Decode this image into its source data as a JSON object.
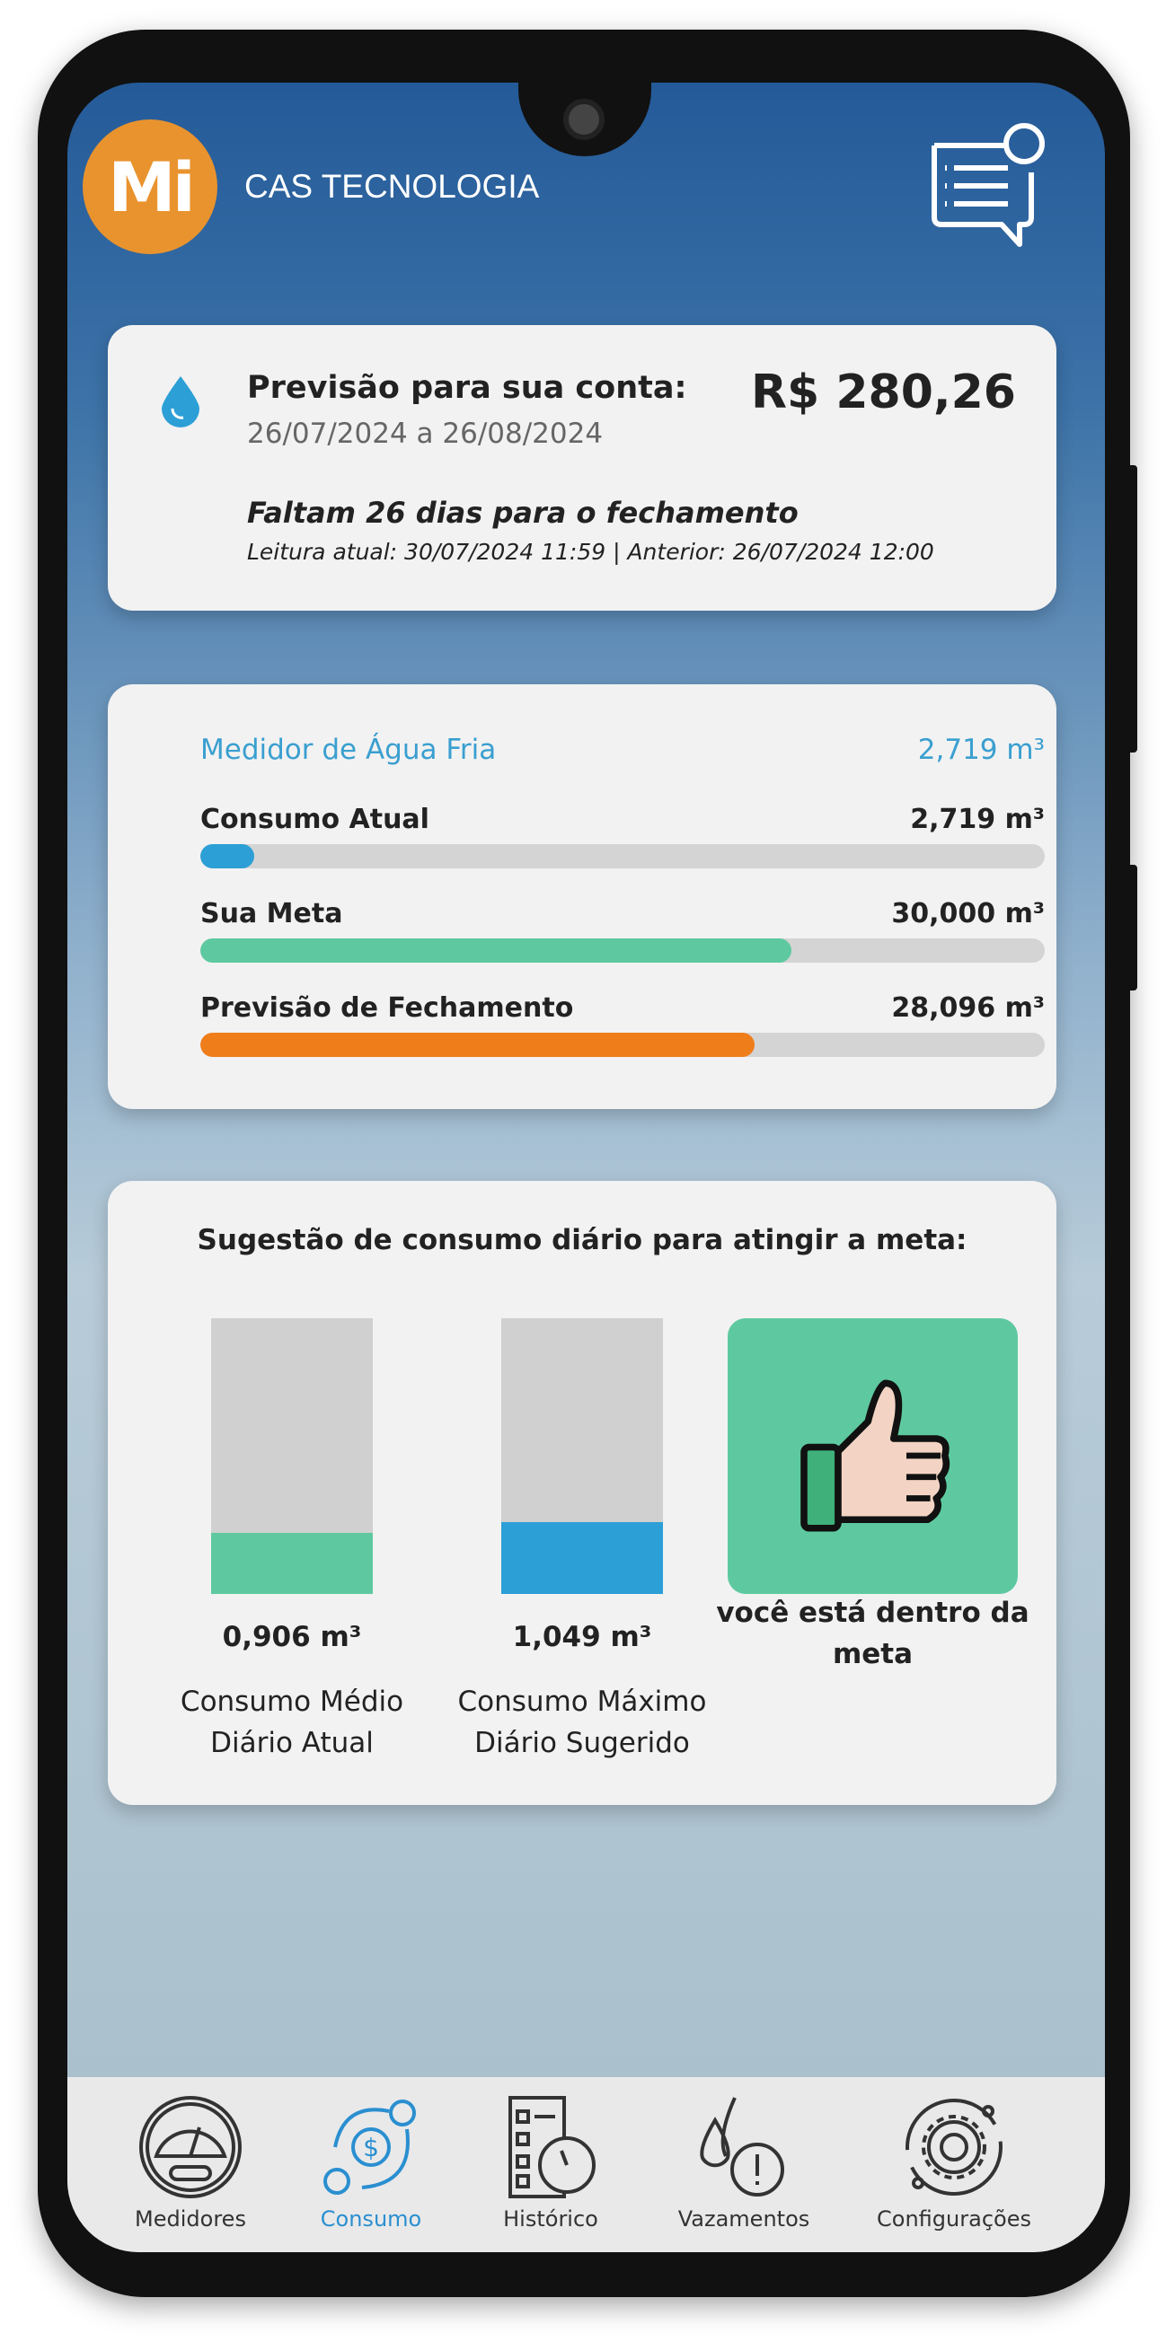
{
  "header": {
    "logo_text": "Mi",
    "title": "CAS TECNOLOGIA",
    "icon": "chat-notification-icon"
  },
  "forecast": {
    "icon": "water-drop-icon",
    "title": "Previsão para sua conta:",
    "period": "26/07/2024 a 26/08/2024",
    "amount": "R$ 280,26",
    "remaining": "Faltam 26 dias para o fechamento",
    "readings": "Leitura atual: 30/07/2024 11:59 | Anterior: 26/07/2024 12:00"
  },
  "meter": {
    "name": "Medidor de Água Fria",
    "total": "2,719 m³",
    "rows": [
      {
        "label": "Consumo Atual",
        "value": "2,719 m³",
        "fill": 0.064,
        "color": "#2c9fd6"
      },
      {
        "label": "Sua Meta",
        "value": "30,000 m³",
        "fill": 0.7,
        "color": "#5ec9a0"
      },
      {
        "label": "Previsão de Fechamento",
        "value": "28,096 m³",
        "fill": 0.656,
        "color": "#ef7d1a"
      }
    ]
  },
  "suggestion": {
    "title": "Sugestão de consumo diário para atingir a meta:",
    "bars": [
      {
        "value": "0,906 m³",
        "label1": "Consumo Médio",
        "label2": "Diário Atual",
        "fill": 0.22,
        "color": "#5ec9a0"
      },
      {
        "value": "1,049 m³",
        "label1": "Consumo Máximo",
        "label2": "Diário Sugerido",
        "fill": 0.26,
        "color": "#2c9fd6"
      }
    ],
    "status_icon": "thumbs-up-icon",
    "status_line1": "você está dentro da",
    "status_line2": "meta",
    "status_color": "#5ec9a0"
  },
  "nav": {
    "active": "Consumo",
    "active_color": "#2a8fd0",
    "items": [
      {
        "label": "Medidores",
        "icon": "meter-gauge-icon"
      },
      {
        "label": "Consumo",
        "icon": "currency-exchange-icon"
      },
      {
        "label": "Histórico",
        "icon": "checklist-clock-icon"
      },
      {
        "label": "Vazamentos",
        "icon": "drop-alert-icon"
      },
      {
        "label": "Configurações",
        "icon": "gear-icon"
      }
    ]
  }
}
